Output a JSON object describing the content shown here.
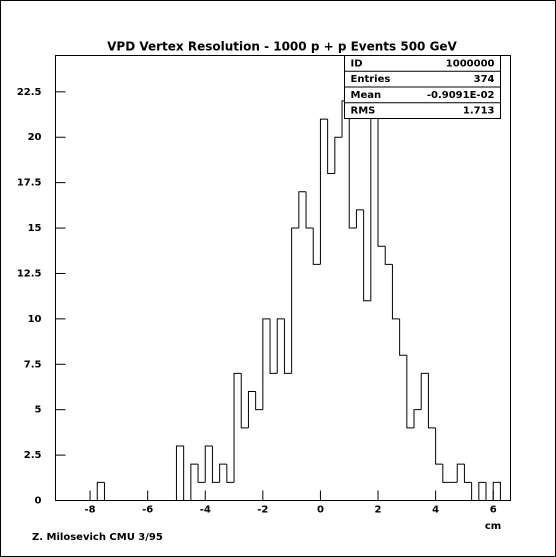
{
  "chart_data": {
    "type": "histogram",
    "title": "VPD Vertex Resolution - 1000 p + p Events 500 GeV",
    "x_label": "cm",
    "footer": "Z. Milosevich CMU 3/95",
    "stats": [
      {
        "label": "ID",
        "value": "1000000"
      },
      {
        "label": "Entries",
        "value": "374"
      },
      {
        "label": "Mean",
        "value": "-0.9091E-02"
      },
      {
        "label": "RMS",
        "value": "1.713"
      }
    ],
    "bins": [
      -7.75,
      -7.5,
      -7.25,
      -7,
      -6.75,
      -6.5,
      -6.25,
      -6,
      -5.75,
      -5.5,
      -5.25,
      -5,
      -4.75,
      -4.5,
      -4.25,
      -4,
      -3.75,
      -3.5,
      -3.25,
      -3,
      -2.75,
      -2.5,
      -2.25,
      -2,
      -1.75,
      -1.5,
      -1.25,
      -1,
      -0.75,
      -0.5,
      -0.25,
      0,
      0.25,
      0.5,
      0.75,
      1,
      1.25,
      1.5,
      1.75,
      2,
      2.25,
      2.5,
      2.75,
      3,
      3.25,
      3.5,
      3.75,
      4,
      4.25,
      4.5,
      4.75,
      5,
      5.25,
      5.5,
      5.75,
      6,
      6.25
    ],
    "counts": [
      1,
      0,
      0,
      0,
      0,
      0,
      0,
      0,
      0,
      0,
      0,
      3,
      0,
      2,
      1,
      3,
      1,
      2,
      1,
      7,
      4,
      6,
      5,
      10,
      7,
      10,
      7,
      15,
      17,
      15,
      13,
      21,
      18,
      20,
      22,
      15,
      16,
      11,
      22,
      14,
      13,
      10,
      8,
      4,
      5,
      7,
      4,
      2,
      1,
      1,
      2,
      1,
      0,
      1,
      0,
      1
    ],
    "color": "#000000",
    "xlim": [
      -9.2,
      6.6
    ],
    "xticks": [
      -8,
      -6,
      -4,
      -2,
      0,
      2,
      4,
      6
    ],
    "ylim": [
      0,
      24.5
    ],
    "yticks": [
      0,
      2.5,
      5,
      7.5,
      10,
      12.5,
      15,
      17.5,
      20,
      22.5
    ]
  }
}
